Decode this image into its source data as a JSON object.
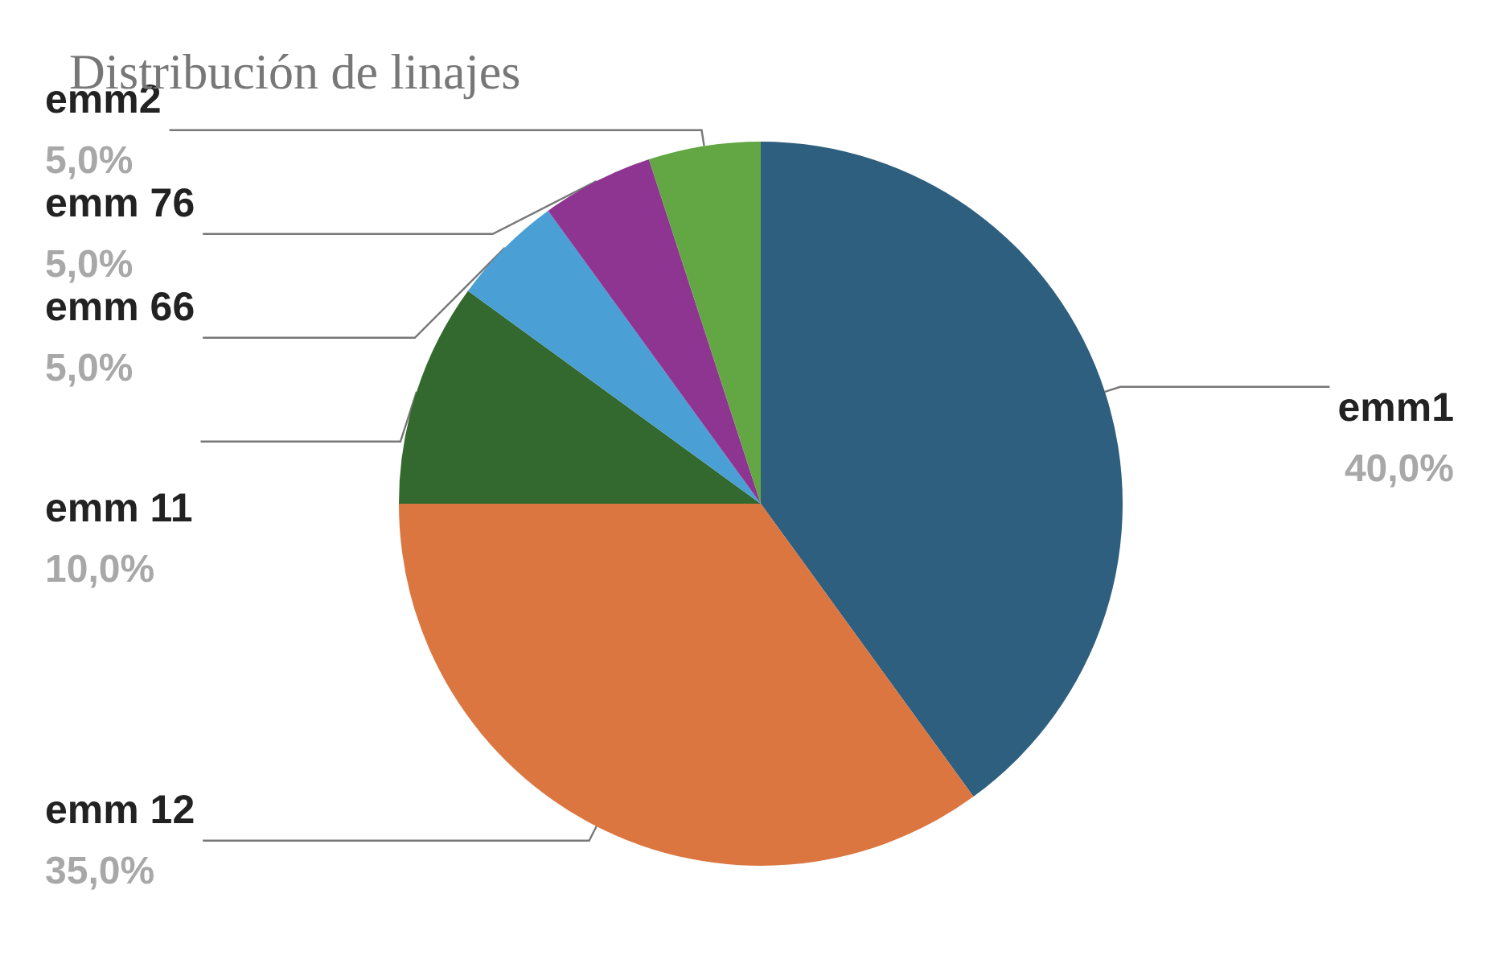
{
  "chart_data": {
    "type": "pie",
    "title": "Distribución de linajes",
    "categories": [
      "emm1",
      "emm 12",
      "emm 11",
      "emm 66",
      "emm 76",
      "emm2"
    ],
    "values": [
      40,
      35,
      10,
      5,
      5,
      5
    ],
    "colors": [
      "#2e5f7f",
      "#dc7640",
      "#33692e",
      "#4a9fd5",
      "#8e3592",
      "#62a744"
    ],
    "value_labels": [
      "40,0%",
      "35,0%",
      "10,0%",
      "5,0%",
      "5,0%",
      "5,0%"
    ],
    "legend": false
  }
}
